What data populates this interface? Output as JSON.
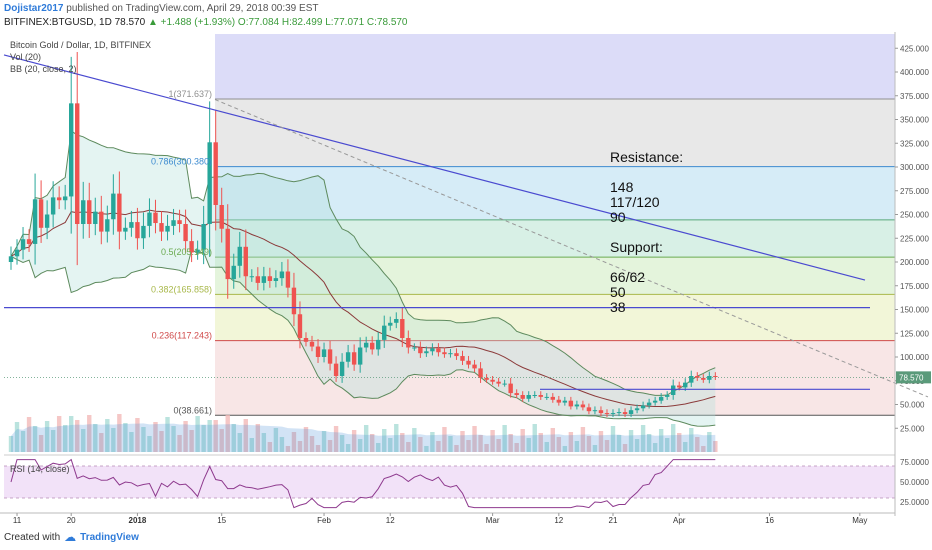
{
  "header": {
    "author": "Dojistar2017",
    "published": "published on TradingView.com, April 29, 2018 00:39 EST",
    "symbol": "BITFINEX:BTGUSD, 1D",
    "last": "78.570",
    "change": "▲ +1.488 (+1.93%)",
    "ohlc": "O:77.084 H:82.499 L:77.071 C:78.570"
  },
  "legend": {
    "title": "Bitcoin Gold / Dollar, 1D, BITFINEX",
    "vol": "Vol (20)",
    "bb": "BB (20, close, 2)",
    "rsi": "RSI (14, close)"
  },
  "footer": {
    "created": "Created with",
    "brand": "TradingView"
  },
  "colors": {
    "candle_up": "#26a69a",
    "candle_down": "#ef5350",
    "bb_line": "#5d8a5d",
    "basis": "#8b3a3a",
    "bb_fill": "#b2dfdb",
    "trendline": "#4a4ad0",
    "rsi_line": "#8e3a8e",
    "rsi_band": "#ecd5f5",
    "hline": "#4a4ad0",
    "price_tag": "#5a9a7a"
  },
  "chart_data": {
    "type": "candlestick",
    "ylim": [
      0,
      440
    ],
    "y_ticks": [
      25,
      50,
      75,
      100,
      125,
      150,
      175,
      200,
      225,
      250,
      275,
      300,
      325,
      350,
      375,
      400,
      425
    ],
    "y_tick_labels": [
      "25.000",
      "50.000",
      "75.000",
      "100.000",
      "125.000",
      "150.000",
      "175.000",
      "200.000",
      "225.000",
      "250.000",
      "275.000",
      "300.000",
      "325.000",
      "350.000",
      "375.000",
      "400.000",
      "425.000"
    ],
    "x_tick_labels": [
      {
        "label": "11",
        "bar": 1
      },
      {
        "label": "20",
        "bar": 10
      },
      {
        "label": "2018",
        "bar": 21
      },
      {
        "label": "15",
        "bar": 35
      },
      {
        "label": "Feb",
        "bar": 52
      },
      {
        "label": "12",
        "bar": 63
      },
      {
        "label": "Mar",
        "bar": 80
      },
      {
        "label": "12",
        "bar": 91
      },
      {
        "label": "21",
        "bar": 100
      },
      {
        "label": "Apr",
        "bar": 111
      },
      {
        "label": "16",
        "bar": 126
      },
      {
        "label": "May",
        "bar": 141
      }
    ],
    "fib_levels": [
      {
        "ratio": 1,
        "label": "1(371.637)",
        "price": 371.637,
        "band_color": "#e8e8e8",
        "line_color": "#909090"
      },
      {
        "ratio": 0.786,
        "label": "0.786(300.380)",
        "price": 300.38,
        "band_color": "#d6ecf7",
        "line_color": "#3d8bd0"
      },
      {
        "ratio": 0.618,
        "label": "",
        "price": 244.4,
        "band_color": "#d8f0e6",
        "line_color": "#5aa87a"
      },
      {
        "ratio": 0.5,
        "label": "0.5(205.149)",
        "price": 205.149,
        "band_color": "#e4f4dc",
        "line_color": "#6aaa50"
      },
      {
        "ratio": 0.382,
        "label": "0.382(165.858)",
        "price": 165.858,
        "band_color": "#f2f6d8",
        "line_color": "#a8b84a"
      },
      {
        "ratio": 0.236,
        "label": "0.236(117.243)",
        "price": 117.243,
        "band_color": "#f8e6e6",
        "line_color": "#d04a4a"
      },
      {
        "ratio": 0,
        "label": "0(38.661)",
        "price": 38.661,
        "band_color": "#f6dada",
        "line_color": "#555555"
      }
    ],
    "fib_top_band": {
      "price": 440,
      "band_color": "#dcdcf8"
    },
    "horizontal_lines": [
      152,
      66
    ],
    "last_price_label": "78.570",
    "last_price": 78.57,
    "annotation": [
      "Resistance:",
      "148",
      "117/120",
      "90",
      "Support:",
      "66/62",
      "50",
      "38"
    ],
    "rsi": {
      "ylim": [
        15,
        80
      ],
      "y_ticks": [
        25,
        50,
        75
      ],
      "y_tick_labels": [
        "25.0000",
        "50.0000",
        "75.0000"
      ],
      "band": [
        30,
        70
      ]
    }
  }
}
